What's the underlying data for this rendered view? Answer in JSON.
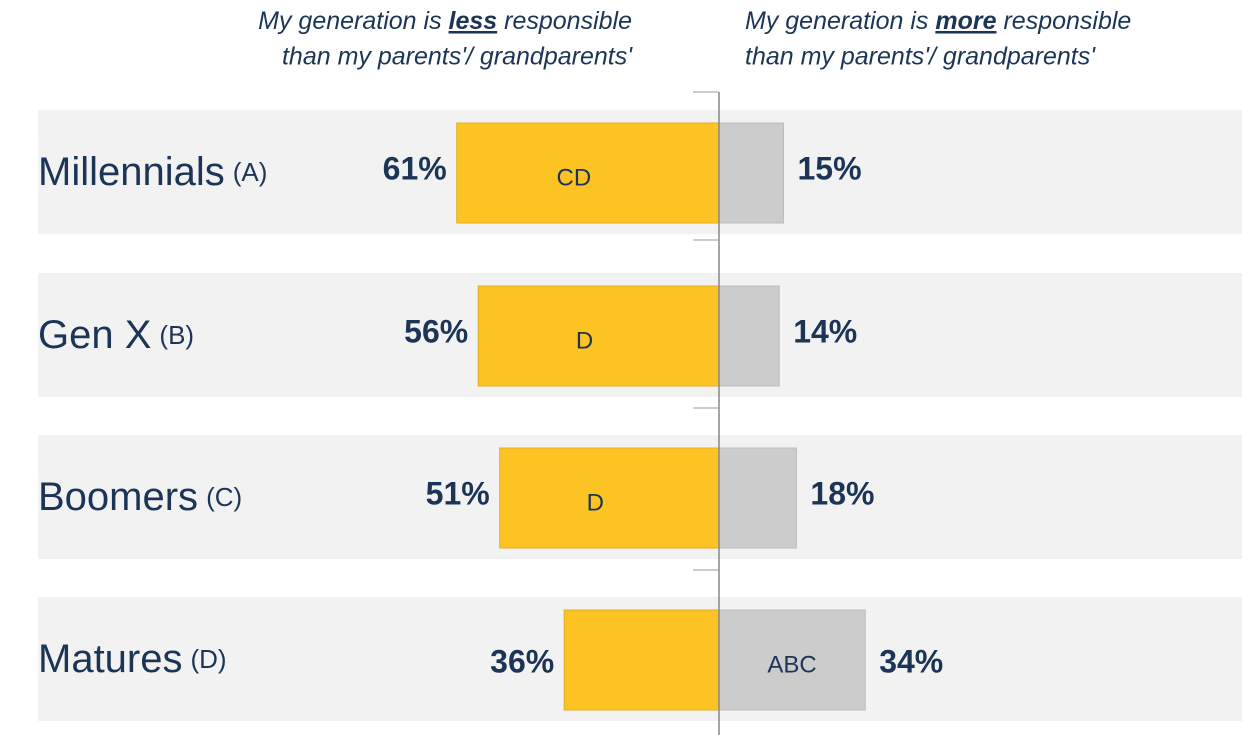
{
  "chart_data": {
    "type": "diverging_bar",
    "categories": [
      "Millennials",
      "Gen X",
      "Boomers",
      "Matures"
    ],
    "category_codes": [
      "(A)",
      "(B)",
      "(C)",
      "(D)"
    ],
    "series": [
      {
        "name": {
          "before": "My generation is ",
          "emphasis": "less",
          "after": " responsible",
          "line2": "than my parents'/ grandparents'"
        },
        "color": "#fdc323",
        "side": "left",
        "values": [
          61,
          56,
          51,
          36
        ],
        "value_labels": [
          "61%",
          "56%",
          "51%",
          "36%"
        ],
        "significance": [
          "CD",
          "D",
          "D",
          null
        ]
      },
      {
        "name": {
          "before": "My generation is ",
          "emphasis": "more",
          "after": " responsible",
          "line2": "than my parents'/ grandparents'"
        },
        "color": "#cccccc",
        "side": "right",
        "values": [
          15,
          14,
          18,
          34
        ],
        "value_labels": [
          "15%",
          "14%",
          "18%",
          "34%"
        ],
        "significance": [
          null,
          null,
          null,
          "ABC"
        ]
      }
    ]
  }
}
